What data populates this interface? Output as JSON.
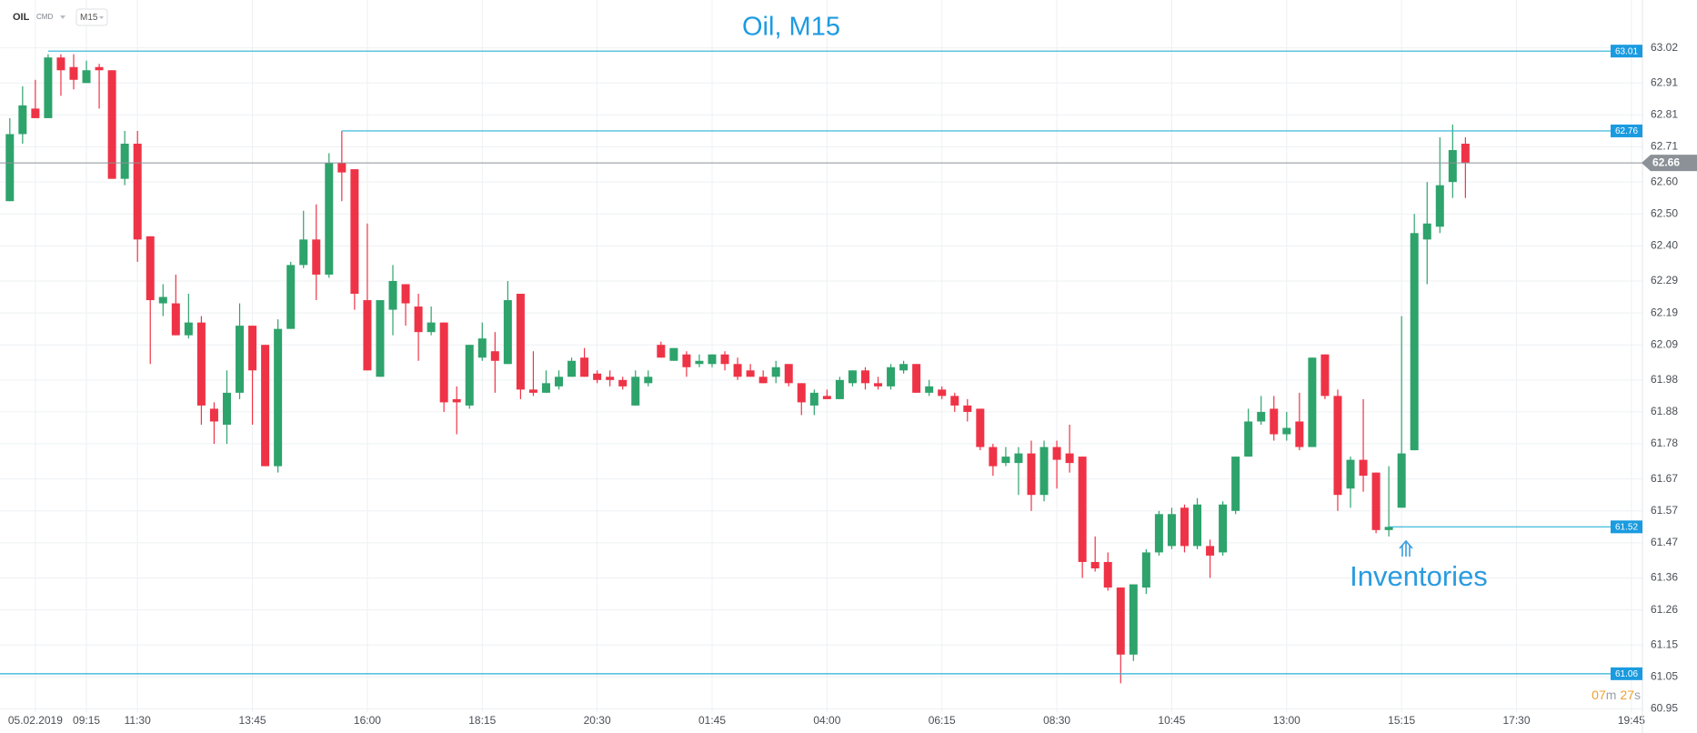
{
  "toolbar": {
    "symbol": "OIL",
    "market": "CMD",
    "interval": "M15"
  },
  "countdown": {
    "minutes": "07",
    "minutes_unit": "m",
    "seconds": "27",
    "seconds_unit": "s"
  },
  "chart_data": {
    "type": "candlestick",
    "title": "Oil, M15",
    "annotation": "Inventories",
    "up_color": "#2ea36c",
    "down_color": "#ef3347",
    "level_color": "#29b2d6",
    "level_label_color": "#1a9be0",
    "current_price_color": "#8b9197",
    "grid": true,
    "categories": [
      null,
      null,
      "05.02.2019",
      null,
      null,
      null,
      "09:15",
      null,
      null,
      null,
      "11:30",
      null,
      null,
      null,
      null,
      null,
      null,
      null,
      null,
      "13:45",
      null,
      null,
      null,
      null,
      null,
      null,
      null,
      null,
      "16:00",
      null,
      null,
      null,
      null,
      null,
      null,
      null,
      null,
      "18:15",
      null,
      null,
      null,
      null,
      null,
      null,
      null,
      null,
      "20:30",
      null,
      null,
      null,
      null,
      null,
      null,
      null,
      null,
      "01:45",
      null,
      null,
      null,
      null,
      null,
      null,
      null,
      null,
      "04:00",
      null,
      null,
      null,
      null,
      null,
      null,
      null,
      null,
      "06:15",
      null,
      null,
      null,
      null,
      null,
      null,
      null,
      null,
      "08:30",
      null,
      null,
      null,
      null,
      null,
      null,
      null,
      null,
      "10:45",
      null,
      null,
      null,
      null,
      null,
      null,
      null,
      null,
      "13:00",
      null,
      null,
      null,
      null,
      null,
      null,
      null,
      null,
      "15:15",
      null,
      null,
      null,
      null,
      null,
      null,
      null,
      null,
      "17:30",
      null,
      null,
      null,
      null,
      null,
      null,
      null,
      null,
      "19:45"
    ],
    "open": [
      62.54,
      62.75,
      62.83,
      62.8,
      62.99,
      62.96,
      62.91,
      62.96,
      62.95,
      62.61,
      62.72,
      62.43,
      62.22,
      62.22,
      62.12,
      62.16,
      61.89,
      61.84,
      61.94,
      62.15,
      62.09,
      61.71,
      62.14,
      62.34,
      62.42,
      62.31,
      62.66,
      62.64,
      62.23,
      61.99,
      62.2,
      62.28,
      62.21,
      62.13,
      62.16,
      61.92,
      61.9,
      62.05,
      62.07,
      62.03,
      62.25,
      61.95,
      61.94,
      61.96,
      61.99,
      62.05,
      62.0,
      61.99,
      61.98,
      61.9,
      61.97,
      62.09,
      62.04,
      62.06,
      62.03,
      62.03,
      62.06,
      62.03,
      62.01,
      61.99,
      61.99,
      62.03,
      61.97,
      61.9,
      61.93,
      61.92,
      61.97,
      62.01,
      61.97,
      61.96,
      62.01,
      62.03,
      61.94,
      61.95,
      61.93,
      61.9,
      61.89,
      61.77,
      61.72,
      61.72,
      61.75,
      61.62,
      61.77,
      61.75,
      61.74,
      61.41,
      61.41,
      61.33,
      61.12,
      61.33,
      61.44,
      61.46,
      61.58,
      61.46,
      61.46,
      61.44,
      61.57,
      61.74,
      61.85,
      61.89,
      61.81,
      61.85,
      61.77,
      62.06,
      61.93,
      61.64,
      61.73,
      61.69,
      61.51,
      61.58,
      61.76,
      62.42,
      62.46,
      62.6,
      62.72,
      null,
      null,
      null,
      null,
      null,
      null,
      null,
      null,
      null,
      null,
      null,
      null,
      null
    ],
    "high": [
      62.8,
      62.9,
      62.92,
      63.0,
      63.0,
      63.0,
      62.98,
      62.97,
      62.95,
      62.76,
      62.76,
      62.43,
      62.28,
      62.31,
      62.25,
      62.18,
      61.91,
      62.01,
      62.22,
      62.15,
      62.09,
      62.17,
      62.35,
      62.51,
      62.53,
      62.69,
      62.76,
      62.64,
      62.47,
      62.23,
      62.34,
      62.28,
      62.25,
      62.21,
      62.16,
      61.96,
      62.09,
      62.16,
      62.13,
      62.29,
      62.25,
      62.07,
      62.01,
      62.01,
      62.05,
      62.08,
      62.01,
      62.01,
      61.99,
      62.01,
      62.01,
      62.1,
      62.08,
      62.07,
      62.06,
      62.06,
      62.07,
      62.05,
      62.03,
      62.01,
      62.04,
      62.03,
      61.97,
      61.95,
      61.95,
      61.99,
      62.01,
      62.02,
      61.99,
      62.03,
      62.04,
      62.03,
      61.98,
      61.96,
      61.94,
      61.92,
      61.89,
      61.78,
      61.77,
      61.77,
      61.79,
      61.79,
      61.79,
      61.84,
      61.74,
      61.49,
      61.44,
      61.33,
      61.34,
      61.45,
      61.57,
      61.58,
      61.59,
      61.61,
      61.48,
      61.6,
      61.74,
      61.89,
      61.93,
      61.93,
      61.88,
      61.94,
      62.05,
      62.06,
      61.95,
      61.74,
      61.92,
      61.69,
      61.71,
      62.18,
      62.5,
      62.6,
      62.74,
      62.78,
      62.74,
      null,
      null,
      null,
      null,
      null,
      null,
      null,
      null,
      null,
      null,
      null,
      null,
      null
    ],
    "low": [
      62.54,
      62.72,
      62.8,
      62.8,
      62.87,
      62.89,
      62.91,
      62.83,
      62.61,
      62.59,
      62.35,
      62.03,
      62.18,
      62.12,
      62.11,
      61.84,
      61.78,
      61.78,
      61.92,
      61.84,
      61.71,
      61.69,
      62.14,
      62.33,
      62.23,
      62.3,
      62.54,
      62.2,
      62.01,
      61.99,
      62.12,
      62.15,
      62.04,
      62.12,
      61.88,
      61.81,
      61.89,
      62.04,
      61.94,
      62.03,
      61.92,
      61.93,
      61.94,
      61.95,
      61.99,
      61.99,
      61.97,
      61.96,
      61.95,
      61.9,
      61.96,
      62.05,
      62.04,
      61.99,
      62.02,
      62.02,
      62.01,
      61.98,
      61.99,
      61.97,
      61.97,
      61.96,
      61.87,
      61.87,
      61.92,
      61.92,
      61.96,
      61.95,
      61.95,
      61.95,
      62.0,
      61.94,
      61.93,
      61.92,
      61.88,
      61.85,
      61.76,
      61.68,
      61.71,
      61.62,
      61.57,
      61.6,
      61.64,
      61.69,
      61.36,
      61.38,
      61.32,
      61.03,
      61.1,
      61.31,
      61.43,
      61.45,
      61.44,
      61.45,
      61.36,
      61.43,
      61.56,
      61.74,
      61.84,
      61.79,
      61.79,
      61.76,
      61.77,
      61.92,
      61.57,
      61.58,
      61.63,
      61.5,
      61.49,
      61.58,
      61.76,
      62.28,
      62.44,
      62.55,
      62.55,
      null,
      null,
      null,
      null,
      null,
      null,
      null,
      null,
      null,
      null,
      null,
      null,
      null
    ],
    "close": [
      62.75,
      62.84,
      62.8,
      62.99,
      62.95,
      62.92,
      62.95,
      62.95,
      62.61,
      62.72,
      62.42,
      62.23,
      62.24,
      62.12,
      62.16,
      61.9,
      61.85,
      61.94,
      62.15,
      62.01,
      61.71,
      62.14,
      62.34,
      62.42,
      62.31,
      62.66,
      62.63,
      62.25,
      62.01,
      62.23,
      62.29,
      62.22,
      62.13,
      62.16,
      61.91,
      61.91,
      62.09,
      62.11,
      62.04,
      62.23,
      61.95,
      61.94,
      61.97,
      61.99,
      62.04,
      61.99,
      61.98,
      61.98,
      61.96,
      61.99,
      61.99,
      62.05,
      62.08,
      62.02,
      62.04,
      62.06,
      62.03,
      61.99,
      61.99,
      61.97,
      62.02,
      61.97,
      61.91,
      61.94,
      61.92,
      61.98,
      62.01,
      61.97,
      61.96,
      62.02,
      62.03,
      61.94,
      61.96,
      61.93,
      61.9,
      61.88,
      61.77,
      61.71,
      61.74,
      61.75,
      61.62,
      61.77,
      61.73,
      61.72,
      61.41,
      61.39,
      61.33,
      61.12,
      61.34,
      61.44,
      61.56,
      61.56,
      61.46,
      61.59,
      61.43,
      61.59,
      61.74,
      61.85,
      61.88,
      61.81,
      61.83,
      61.77,
      62.05,
      61.93,
      61.62,
      61.73,
      61.68,
      61.51,
      61.52,
      61.75,
      62.44,
      62.47,
      62.59,
      62.7,
      62.66,
      null,
      null,
      null,
      null,
      null,
      null,
      null,
      null,
      null,
      null,
      null,
      null,
      null
    ],
    "levels": [
      63.01,
      62.76,
      61.52,
      61.06
    ],
    "current_price": 62.66,
    "ylim": [
      60.92,
      63.17
    ],
    "yticks": [
      63.02,
      62.91,
      62.81,
      62.71,
      {
        "value": 62.6,
        "label": "62.60"
      },
      {
        "value": 62.5,
        "label": "62.50"
      },
      {
        "value": 62.4,
        "label": "62.40"
      },
      62.29,
      62.19,
      62.09,
      61.98,
      61.88,
      61.78,
      61.67,
      61.57,
      61.47,
      61.36,
      61.26,
      61.15,
      61.05,
      60.95
    ]
  }
}
